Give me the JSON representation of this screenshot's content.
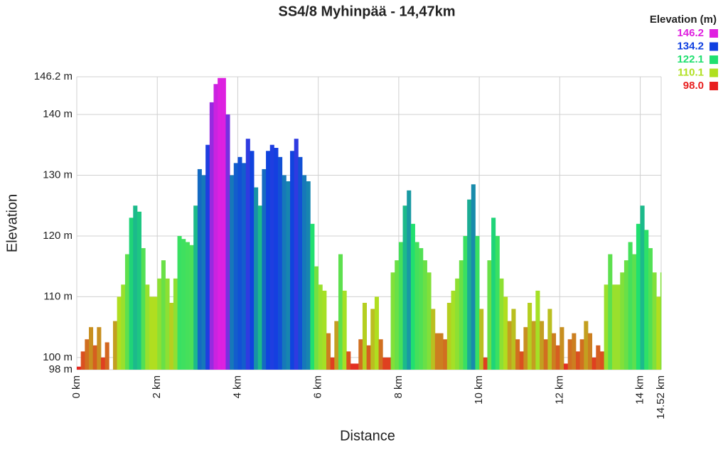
{
  "chart_data": {
    "type": "elevation-profile",
    "title": "SS4/8 Myhinpää - 14,47km",
    "x_label": "Distance",
    "y_label": "Elevation",
    "legend_title": "Elevation (m)",
    "legend": [
      {
        "value": 146.2,
        "color": "#e020e0"
      },
      {
        "value": 134.2,
        "color": "#1040e0"
      },
      {
        "value": 122.1,
        "color": "#20e070"
      },
      {
        "value": 110.1,
        "color": "#b0e020"
      },
      {
        "value": 98,
        "label": "98.0",
        "color": "#e82020"
      }
    ],
    "xlim": [
      0,
      14.52
    ],
    "ylim": [
      98,
      146.2
    ],
    "grid": true,
    "xticks": [
      {
        "value": 0,
        "label": "0 km"
      },
      {
        "value": 2,
        "label": "2 km"
      },
      {
        "value": 4,
        "label": "4 km"
      },
      {
        "value": 6,
        "label": "6 km"
      },
      {
        "value": 8,
        "label": "8 km"
      },
      {
        "value": 10,
        "label": "10 km"
      },
      {
        "value": 12,
        "label": "12 km"
      },
      {
        "value": 14,
        "label": "14 km"
      },
      {
        "value": 14.52,
        "label": "14.52 km"
      }
    ],
    "yticks": [
      {
        "value": 98,
        "label": "98 m"
      },
      {
        "value": 100,
        "label": "100 m"
      },
      {
        "value": 110,
        "label": "110 m"
      },
      {
        "value": 120,
        "label": "120 m"
      },
      {
        "value": 130,
        "label": "130 m"
      },
      {
        "value": 140,
        "label": "140 m"
      },
      {
        "value": 146.2,
        "label": "146.2 m"
      }
    ],
    "x": [
      0,
      0.1,
      0.2,
      0.3,
      0.4,
      0.5,
      0.6,
      0.7,
      0.8,
      0.9,
      1,
      1.1,
      1.2,
      1.3,
      1.4,
      1.5,
      1.6,
      1.7,
      1.8,
      1.9,
      2,
      2.1,
      2.2,
      2.3,
      2.4,
      2.5,
      2.6,
      2.7,
      2.8,
      2.9,
      3,
      3.1,
      3.2,
      3.3,
      3.4,
      3.5,
      3.6,
      3.7,
      3.8,
      3.9,
      4,
      4.1,
      4.2,
      4.3,
      4.4,
      4.5,
      4.6,
      4.7,
      4.8,
      4.9,
      5,
      5.1,
      5.2,
      5.3,
      5.4,
      5.5,
      5.6,
      5.7,
      5.8,
      5.9,
      6,
      6.1,
      6.2,
      6.3,
      6.4,
      6.5,
      6.6,
      6.7,
      6.8,
      6.9,
      7,
      7.1,
      7.2,
      7.3,
      7.4,
      7.5,
      7.6,
      7.7,
      7.8,
      7.9,
      8,
      8.1,
      8.2,
      8.3,
      8.4,
      8.5,
      8.6,
      8.7,
      8.8,
      8.9,
      9,
      9.1,
      9.2,
      9.3,
      9.4,
      9.5,
      9.6,
      9.7,
      9.8,
      9.9,
      10,
      10.1,
      10.2,
      10.3,
      10.4,
      10.5,
      10.6,
      10.7,
      10.8,
      10.9,
      11,
      11.1,
      11.2,
      11.3,
      11.4,
      11.5,
      11.6,
      11.7,
      11.8,
      11.9,
      12,
      12.1,
      12.2,
      12.3,
      12.4,
      12.5,
      12.6,
      12.7,
      12.8,
      12.9,
      13,
      13.1,
      13.2,
      13.3,
      13.4,
      13.5,
      13.6,
      13.7,
      13.8,
      13.9,
      14,
      14.1,
      14.2,
      14.3,
      14.4,
      14.5
    ],
    "values": [
      98.5,
      101,
      103,
      105,
      102,
      105,
      100,
      102.5,
      98,
      106,
      110,
      112,
      117,
      123,
      125,
      124,
      118,
      112,
      110,
      110,
      113,
      116,
      113,
      109,
      113,
      120,
      119.5,
      119,
      118.5,
      125,
      131,
      130,
      135,
      142,
      145,
      146,
      146,
      140,
      130,
      132,
      133,
      132,
      136,
      134,
      128,
      125,
      131,
      134,
      135,
      134.5,
      133,
      130,
      129,
      134,
      136,
      133,
      130,
      129,
      122,
      115,
      112,
      111,
      104,
      100,
      106,
      117,
      111,
      101,
      99,
      99,
      103,
      109,
      102,
      108,
      110,
      103,
      100,
      100,
      114,
      116,
      119,
      125,
      127.5,
      122,
      119,
      118,
      116,
      114,
      108,
      104,
      104,
      103,
      109,
      111,
      113,
      116,
      120,
      126,
      128.5,
      120,
      108,
      100,
      116,
      123,
      120,
      113,
      110,
      106,
      108,
      103,
      101,
      105,
      109,
      106,
      111,
      106,
      103,
      108,
      104,
      102,
      105,
      99,
      103,
      104,
      101,
      103,
      106,
      104,
      100,
      102,
      101,
      112,
      117,
      112,
      112,
      114,
      116,
      119,
      117,
      122,
      125,
      121,
      118,
      114,
      110,
      114
    ]
  }
}
